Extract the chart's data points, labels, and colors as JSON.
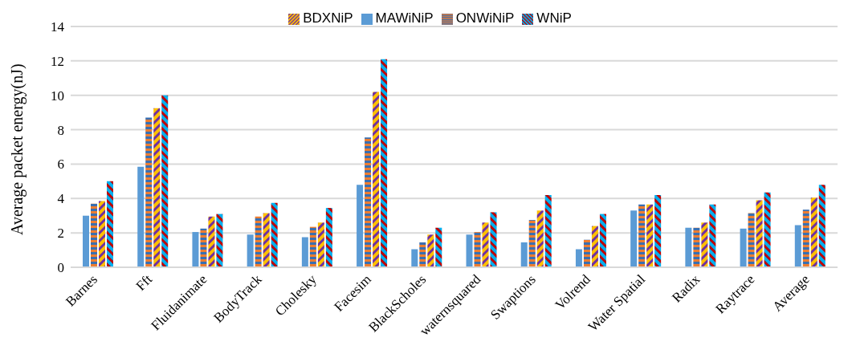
{
  "chart_data": {
    "type": "bar",
    "ylabel": "Average packet energy(nJ)",
    "categories": [
      "Barnes",
      "Fft",
      "Fluidanimate",
      "BodyTrack",
      "Cholesky",
      "Facesim",
      "BlackScholes",
      "waternsquared",
      "Swaptions",
      "Volrend",
      "Water Spatial",
      "Radix",
      "Raytrace",
      "Average"
    ],
    "series": [
      {
        "name": "MAWiNiP",
        "color": "#5b9bd5",
        "values": [
          3.0,
          5.85,
          2.05,
          1.9,
          1.75,
          4.8,
          1.05,
          1.9,
          1.45,
          1.05,
          3.3,
          2.3,
          2.25,
          2.45
        ]
      },
      {
        "name": "ONWiNiP",
        "color": "#ed7d31",
        "values": [
          3.7,
          8.7,
          2.25,
          2.95,
          2.35,
          7.55,
          1.45,
          2.05,
          2.75,
          1.6,
          3.65,
          2.3,
          3.15,
          3.35
        ]
      },
      {
        "name": "BDXNiP",
        "color": "#ffc000",
        "values": [
          3.85,
          9.25,
          2.95,
          3.15,
          2.6,
          10.2,
          1.9,
          2.6,
          3.3,
          2.4,
          3.65,
          2.6,
          3.9,
          4.05
        ]
      },
      {
        "name": "WNiP",
        "color": "#00b0f0",
        "values": [
          5.0,
          10.0,
          3.1,
          3.75,
          3.45,
          12.1,
          2.3,
          3.2,
          4.2,
          3.1,
          4.2,
          3.65,
          4.35,
          4.8
        ]
      }
    ],
    "ylim": [
      0,
      14
    ],
    "yticks": [
      0,
      2,
      4,
      6,
      8,
      10,
      12,
      14
    ],
    "grid": "y",
    "legend": "top"
  }
}
